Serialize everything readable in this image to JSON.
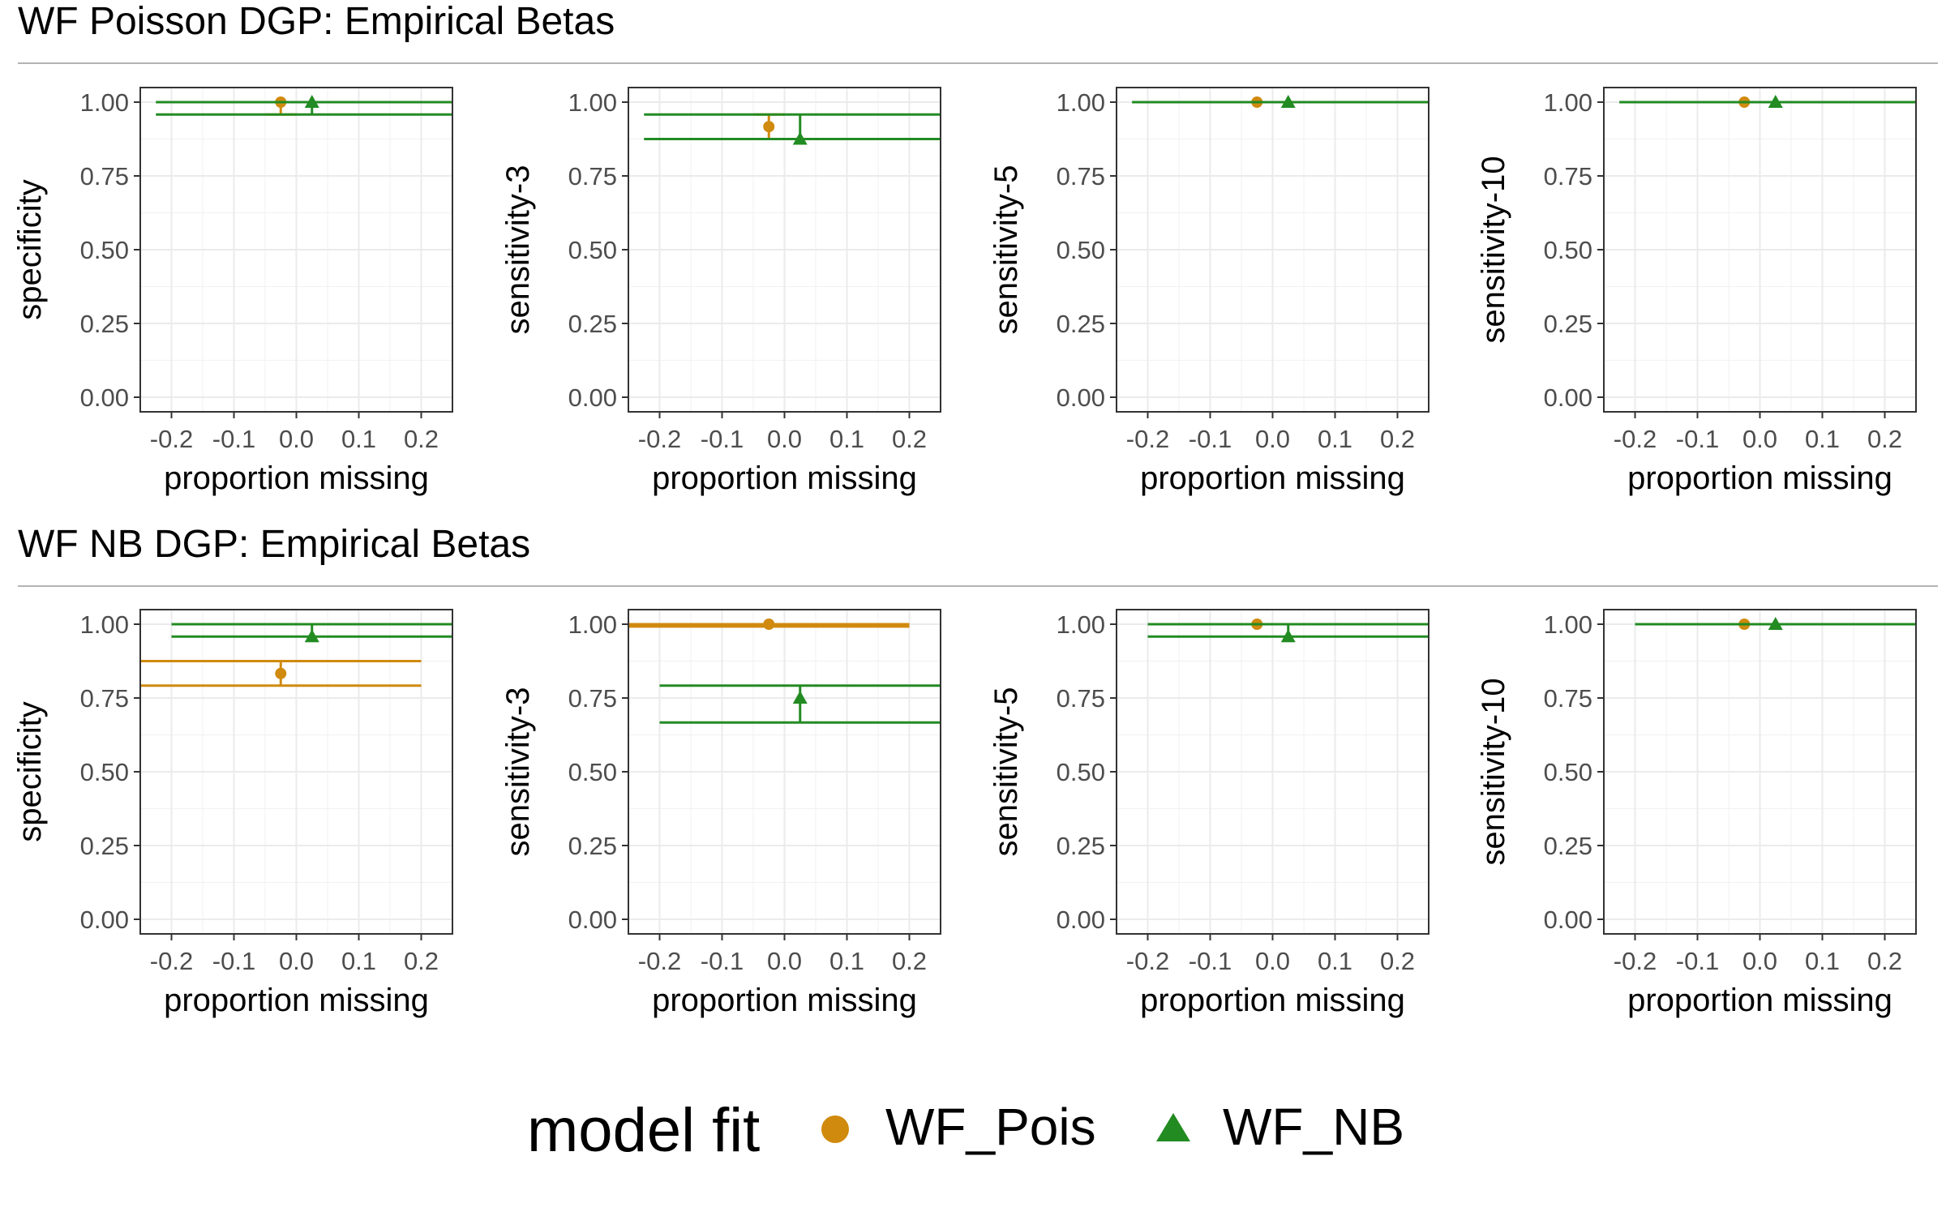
{
  "figure": {
    "rows": [
      {
        "title": "WF Poisson DGP: Empirical Betas"
      },
      {
        "title": "WF NB DGP: Empirical Betas"
      }
    ],
    "legend": {
      "title": "model fit",
      "items": [
        {
          "label": "WF_Pois",
          "color": "#D08A0E",
          "shape": "circle"
        },
        {
          "label": "WF_NB",
          "color": "#228B22",
          "shape": "triangle"
        }
      ]
    }
  },
  "colors": {
    "WF_Pois": "#D08A0E",
    "WF_NB": "#228B22",
    "grid": "#EBEBEB",
    "axis_text": "#4D4D4D"
  },
  "chart_data": [
    {
      "type": "scatter",
      "row": 0,
      "col": 0,
      "xlabel": "proportion missing",
      "ylabel": "specificity",
      "xlim": [
        -0.25,
        0.25
      ],
      "ylim": [
        0,
        1
      ],
      "xticks": [
        "-0.2",
        "-0.1",
        "0.0",
        "0.1",
        "0.2"
      ],
      "yticks": [
        "0.00",
        "0.25",
        "0.50",
        "0.75",
        "1.00"
      ],
      "series": [
        {
          "name": "WF_Pois",
          "x": -0.025,
          "y": 1.0,
          "ymin": 0.958,
          "ymax": 1.0,
          "error_bar_width": 0.05
        },
        {
          "name": "WF_NB",
          "x": 0.025,
          "y": 1.0,
          "ymin": 0.958,
          "ymax": 1.0,
          "error_bar_width": 0.5
        }
      ]
    },
    {
      "type": "scatter",
      "row": 0,
      "col": 1,
      "xlabel": "proportion missing",
      "ylabel": "sensitivity-3",
      "xlim": [
        -0.25,
        0.25
      ],
      "ylim": [
        0,
        1
      ],
      "xticks": [
        "-0.2",
        "-0.1",
        "0.0",
        "0.1",
        "0.2"
      ],
      "yticks": [
        "0.00",
        "0.25",
        "0.50",
        "0.75",
        "1.00"
      ],
      "series": [
        {
          "name": "WF_Pois",
          "x": -0.025,
          "y": 0.917,
          "ymin": 0.875,
          "ymax": 0.958,
          "error_bar_width": 0.05
        },
        {
          "name": "WF_NB",
          "x": 0.025,
          "y": 0.875,
          "ymin": 0.875,
          "ymax": 0.958,
          "error_bar_width": 0.5
        }
      ]
    },
    {
      "type": "scatter",
      "row": 0,
      "col": 2,
      "xlabel": "proportion missing",
      "ylabel": "sensitivity-5",
      "xlim": [
        -0.25,
        0.25
      ],
      "ylim": [
        0,
        1
      ],
      "xticks": [
        "-0.2",
        "-0.1",
        "0.0",
        "0.1",
        "0.2"
      ],
      "yticks": [
        "0.00",
        "0.25",
        "0.50",
        "0.75",
        "1.00"
      ],
      "series": [
        {
          "name": "WF_Pois",
          "x": -0.025,
          "y": 1.0,
          "ymin": 1.0,
          "ymax": 1.0,
          "error_bar_width": 0.05
        },
        {
          "name": "WF_NB",
          "x": 0.025,
          "y": 1.0,
          "ymin": 1.0,
          "ymax": 1.0,
          "error_bar_width": 0.5
        }
      ]
    },
    {
      "type": "scatter",
      "row": 0,
      "col": 3,
      "xlabel": "proportion missing",
      "ylabel": "sensitivity-10",
      "xlim": [
        -0.25,
        0.25
      ],
      "ylim": [
        0,
        1
      ],
      "xticks": [
        "-0.2",
        "-0.1",
        "0.0",
        "0.1",
        "0.2"
      ],
      "yticks": [
        "0.00",
        "0.25",
        "0.50",
        "0.75",
        "1.00"
      ],
      "series": [
        {
          "name": "WF_Pois",
          "x": -0.025,
          "y": 1.0,
          "ymin": 1.0,
          "ymax": 1.0,
          "error_bar_width": 0.05
        },
        {
          "name": "WF_NB",
          "x": 0.025,
          "y": 1.0,
          "ymin": 1.0,
          "ymax": 1.0,
          "error_bar_width": 0.5
        }
      ]
    },
    {
      "type": "scatter",
      "row": 1,
      "col": 0,
      "xlabel": "proportion missing",
      "ylabel": "specificity",
      "xlim": [
        -0.25,
        0.25
      ],
      "ylim": [
        0,
        1
      ],
      "xticks": [
        "-0.2",
        "-0.1",
        "0.0",
        "0.1",
        "0.2"
      ],
      "yticks": [
        "0.00",
        "0.25",
        "0.50",
        "0.75",
        "1.00"
      ],
      "series": [
        {
          "name": "WF_Pois",
          "x": -0.025,
          "y": 0.833,
          "ymin": 0.792,
          "ymax": 0.875,
          "error_bar_width": 0.45
        },
        {
          "name": "WF_NB",
          "x": 0.025,
          "y": 0.958,
          "ymin": 0.958,
          "ymax": 1.0,
          "error_bar_width": 0.45
        }
      ]
    },
    {
      "type": "scatter",
      "row": 1,
      "col": 1,
      "xlabel": "proportion missing",
      "ylabel": "sensitivity-3",
      "xlim": [
        -0.25,
        0.25
      ],
      "ylim": [
        0,
        1
      ],
      "xticks": [
        "-0.2",
        "-0.1",
        "0.0",
        "0.1",
        "0.2"
      ],
      "yticks": [
        "0.00",
        "0.25",
        "0.50",
        "0.75",
        "1.00"
      ],
      "series": [
        {
          "name": "WF_Pois",
          "x": -0.025,
          "y": 1.0,
          "ymin": 0.992,
          "ymax": 1.0,
          "error_bar_width": 0.45
        },
        {
          "name": "WF_NB",
          "x": 0.025,
          "y": 0.75,
          "ymin": 0.667,
          "ymax": 0.792,
          "error_bar_width": 0.45
        }
      ]
    },
    {
      "type": "scatter",
      "row": 1,
      "col": 2,
      "xlabel": "proportion missing",
      "ylabel": "sensitivity-5",
      "xlim": [
        -0.25,
        0.25
      ],
      "ylim": [
        0,
        1
      ],
      "xticks": [
        "-0.2",
        "-0.1",
        "0.0",
        "0.1",
        "0.2"
      ],
      "yticks": [
        "0.00",
        "0.25",
        "0.50",
        "0.75",
        "1.00"
      ],
      "series": [
        {
          "name": "WF_Pois",
          "x": -0.025,
          "y": 1.0,
          "ymin": 1.0,
          "ymax": 1.0,
          "error_bar_width": 0.05
        },
        {
          "name": "WF_NB",
          "x": 0.025,
          "y": 0.958,
          "ymin": 0.958,
          "ymax": 1.0,
          "error_bar_width": 0.45
        }
      ]
    },
    {
      "type": "scatter",
      "row": 1,
      "col": 3,
      "xlabel": "proportion missing",
      "ylabel": "sensitivity-10",
      "xlim": [
        -0.25,
        0.25
      ],
      "ylim": [
        0,
        1
      ],
      "xticks": [
        "-0.2",
        "-0.1",
        "0.0",
        "0.1",
        "0.2"
      ],
      "yticks": [
        "0.00",
        "0.25",
        "0.50",
        "0.75",
        "1.00"
      ],
      "series": [
        {
          "name": "WF_Pois",
          "x": -0.025,
          "y": 1.0,
          "ymin": 1.0,
          "ymax": 1.0,
          "error_bar_width": 0.05
        },
        {
          "name": "WF_NB",
          "x": 0.025,
          "y": 1.0,
          "ymin": 1.0,
          "ymax": 1.0,
          "error_bar_width": 0.45
        }
      ]
    }
  ]
}
